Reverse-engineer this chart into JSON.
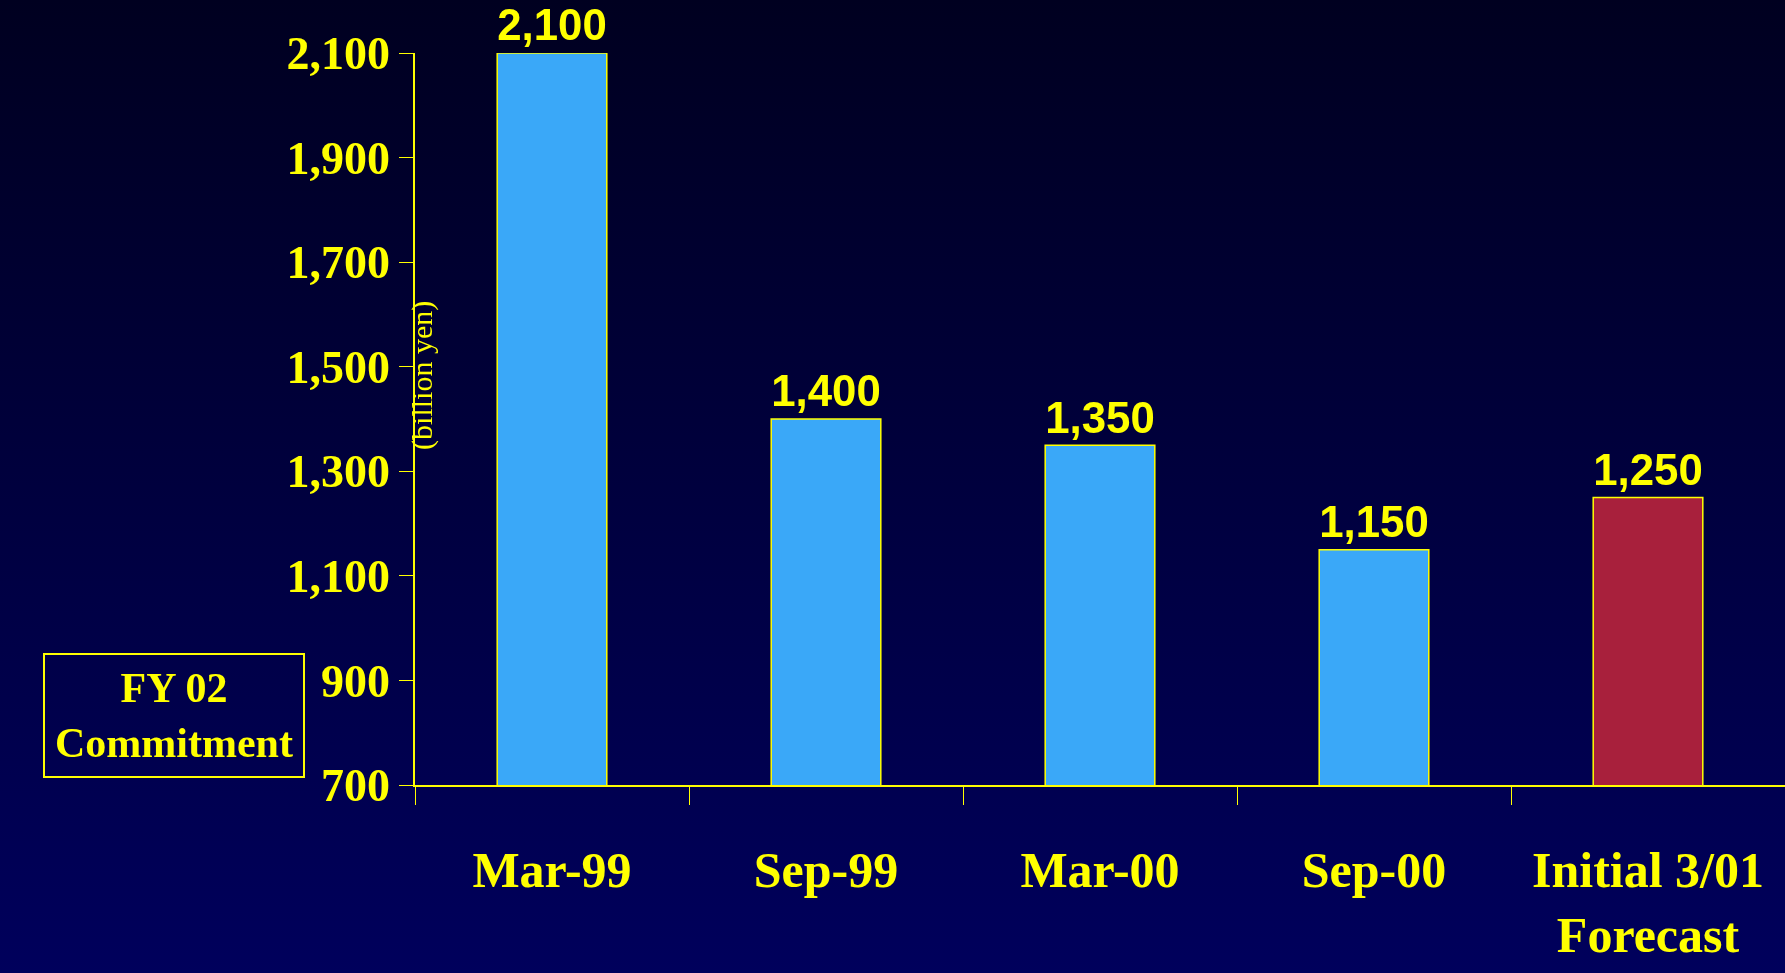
{
  "chart_data": {
    "type": "bar",
    "ylabel": "(billion yen)",
    "categories": [
      "Mar-99",
      "Sep-99",
      "Mar-00",
      "Sep-00",
      "Initial 3/01\nForecast"
    ],
    "values": [
      2100,
      1400,
      1350,
      1150,
      1250
    ],
    "colors": [
      "#3aa8f8",
      "#3aa8f8",
      "#3aa8f8",
      "#3aa8f8",
      "#a8203c"
    ],
    "ylim": [
      700,
      2100
    ],
    "yticks": [
      {
        "value": 700,
        "label": "700"
      },
      {
        "value": 900,
        "label": "900"
      },
      {
        "value": 1100,
        "label": "1,100"
      },
      {
        "value": 1300,
        "label": "1,300"
      },
      {
        "value": 1500,
        "label": "1,500"
      },
      {
        "value": 1700,
        "label": "1,700"
      },
      {
        "value": 1900,
        "label": "1,900"
      },
      {
        "value": 2100,
        "label": "2,100"
      }
    ],
    "value_labels": [
      "2,100",
      "1,400",
      "1,350",
      "1,150",
      "1,250"
    ],
    "grid": false,
    "annotations": [
      "FY 02 Commitment"
    ]
  }
}
